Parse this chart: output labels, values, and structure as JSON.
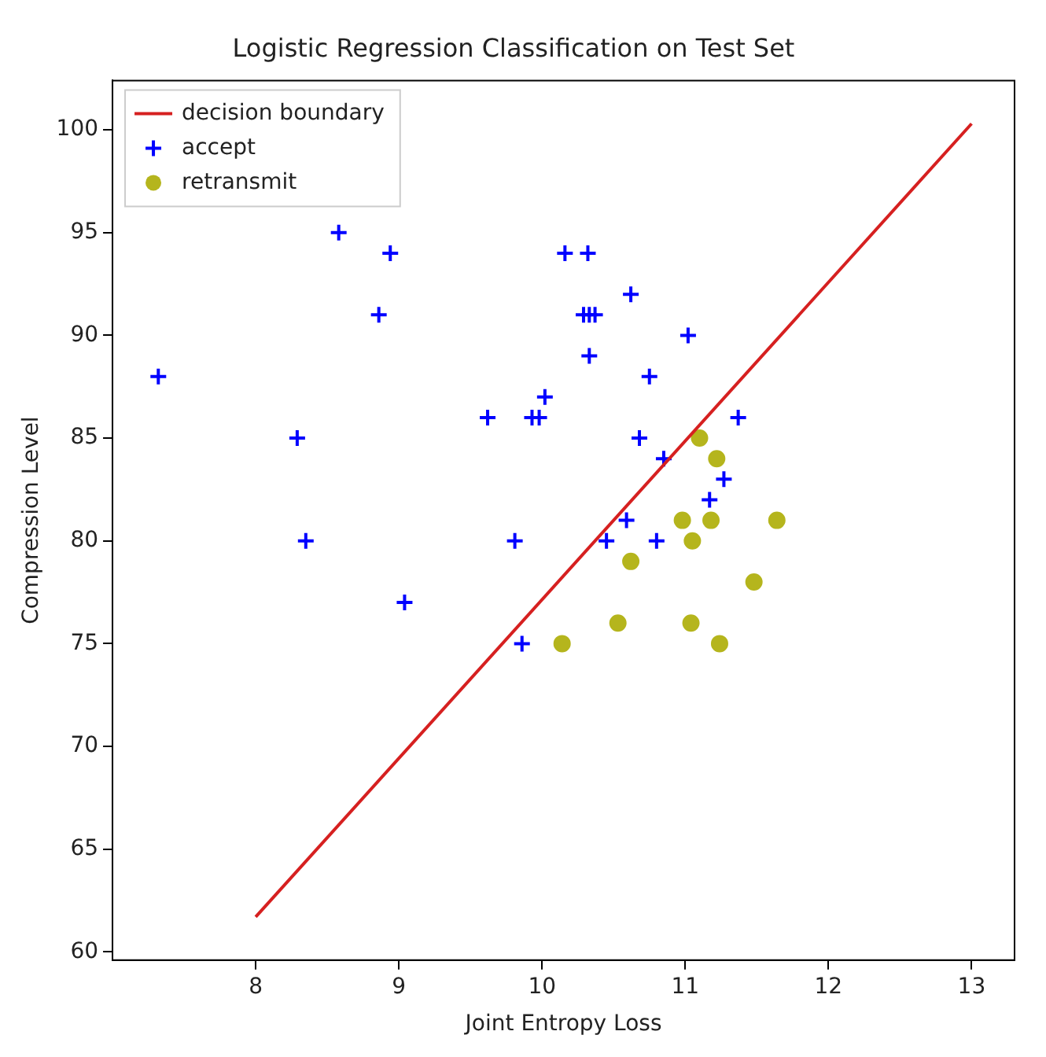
{
  "chart_data": {
    "type": "scatter",
    "title": "Logistic Regression Classification on Test Set",
    "xlabel": "Joint Entropy Loss",
    "ylabel": "Compression Level",
    "xlim": [
      7.0,
      13.3
    ],
    "ylim": [
      59.6,
      102.4
    ],
    "xticks": [
      8,
      9,
      10,
      11,
      12,
      13
    ],
    "yticks": [
      60,
      65,
      70,
      75,
      80,
      85,
      90,
      95,
      100
    ],
    "grid": false,
    "legend": "top left",
    "series": [
      {
        "name": "decision boundary",
        "type": "line",
        "color": "#d62020",
        "marker": "none",
        "line_style": "solid",
        "x": [
          8,
          13
        ],
        "values": [
          61.7,
          100.3
        ]
      },
      {
        "name": "accept",
        "type": "scatter",
        "color": "#0000ff",
        "marker": "cross",
        "x": [
          7.32,
          8.29,
          8.35,
          8.58,
          8.86,
          8.94,
          9.04,
          9.62,
          9.81,
          9.86,
          9.93,
          9.98,
          10.02,
          10.16,
          10.29,
          10.32,
          10.33,
          10.33,
          10.37,
          10.45,
          10.59,
          10.62,
          10.68,
          10.75,
          10.8,
          10.85,
          11.02,
          11.17,
          11.27,
          11.37
        ],
        "values": [
          88,
          85,
          80,
          95,
          91,
          94,
          77,
          86,
          80,
          75,
          86,
          86,
          87,
          94,
          91,
          94,
          91,
          89,
          91,
          80,
          81,
          92,
          85,
          88,
          80,
          84,
          90,
          82,
          83,
          86
        ]
      },
      {
        "name": "retransmit",
        "type": "scatter",
        "color": "#b5b51d",
        "marker": "circle",
        "x": [
          10.14,
          10.53,
          10.62,
          10.98,
          11.05,
          11.04,
          11.1,
          11.18,
          11.22,
          11.24,
          11.48,
          11.64
        ],
        "values": [
          75,
          76,
          79,
          81,
          80,
          76,
          85,
          81,
          84,
          75,
          78,
          81
        ]
      }
    ]
  }
}
